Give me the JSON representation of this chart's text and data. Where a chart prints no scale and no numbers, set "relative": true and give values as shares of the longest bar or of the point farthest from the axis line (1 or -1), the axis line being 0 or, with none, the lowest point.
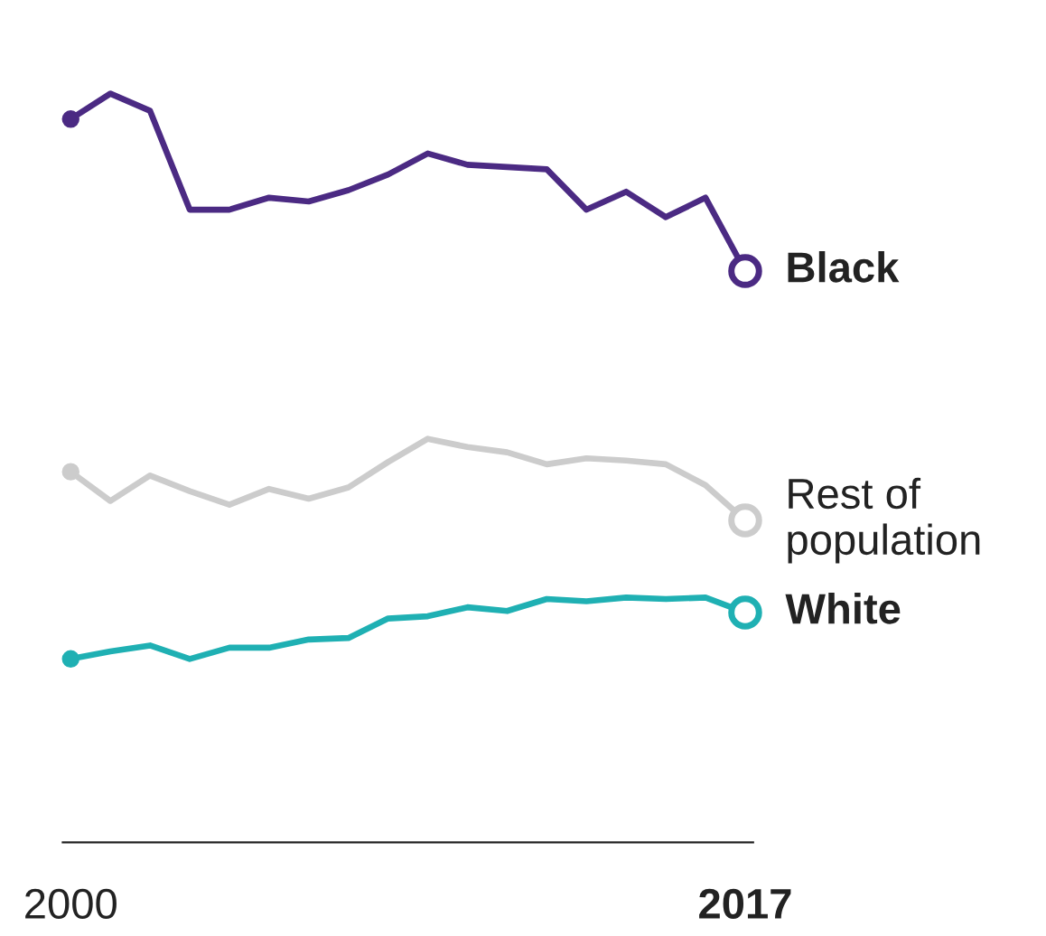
{
  "chart_data": {
    "type": "line",
    "relative": true,
    "tick_labels": "x",
    "legend": "right",
    "marker": "none",
    "line_style": "solid",
    "x": [
      2000,
      2001,
      2002,
      2003,
      2004,
      2005,
      2006,
      2007,
      2008,
      2009,
      2010,
      2011,
      2012,
      2013,
      2014,
      2015,
      2016,
      2017
    ],
    "xlim": [
      1999.8,
      2017.2
    ],
    "xticks": [
      2000,
      2017
    ],
    "series": [
      {
        "name": "Black",
        "color": "#4b2a83",
        "values": [
          0.966,
          1.0,
          0.977,
          0.845,
          0.845,
          0.861,
          0.856,
          0.871,
          0.892,
          0.92,
          0.905,
          0.902,
          0.899,
          0.845,
          0.869,
          0.835,
          0.861,
          0.763
        ]
      },
      {
        "name": "Rest of\npopulation",
        "color": "#cccccc",
        "values": [
          0.495,
          0.456,
          0.49,
          0.469,
          0.451,
          0.472,
          0.459,
          0.474,
          0.508,
          0.539,
          0.528,
          0.521,
          0.505,
          0.513,
          0.51,
          0.505,
          0.477,
          0.43
        ]
      },
      {
        "name": "White",
        "color": "#1fb0b3",
        "values": [
          0.245,
          0.255,
          0.263,
          0.245,
          0.26,
          0.26,
          0.271,
          0.273,
          0.299,
          0.302,
          0.314,
          0.309,
          0.325,
          0.322,
          0.327,
          0.325,
          0.327,
          0.307
        ]
      }
    ]
  }
}
